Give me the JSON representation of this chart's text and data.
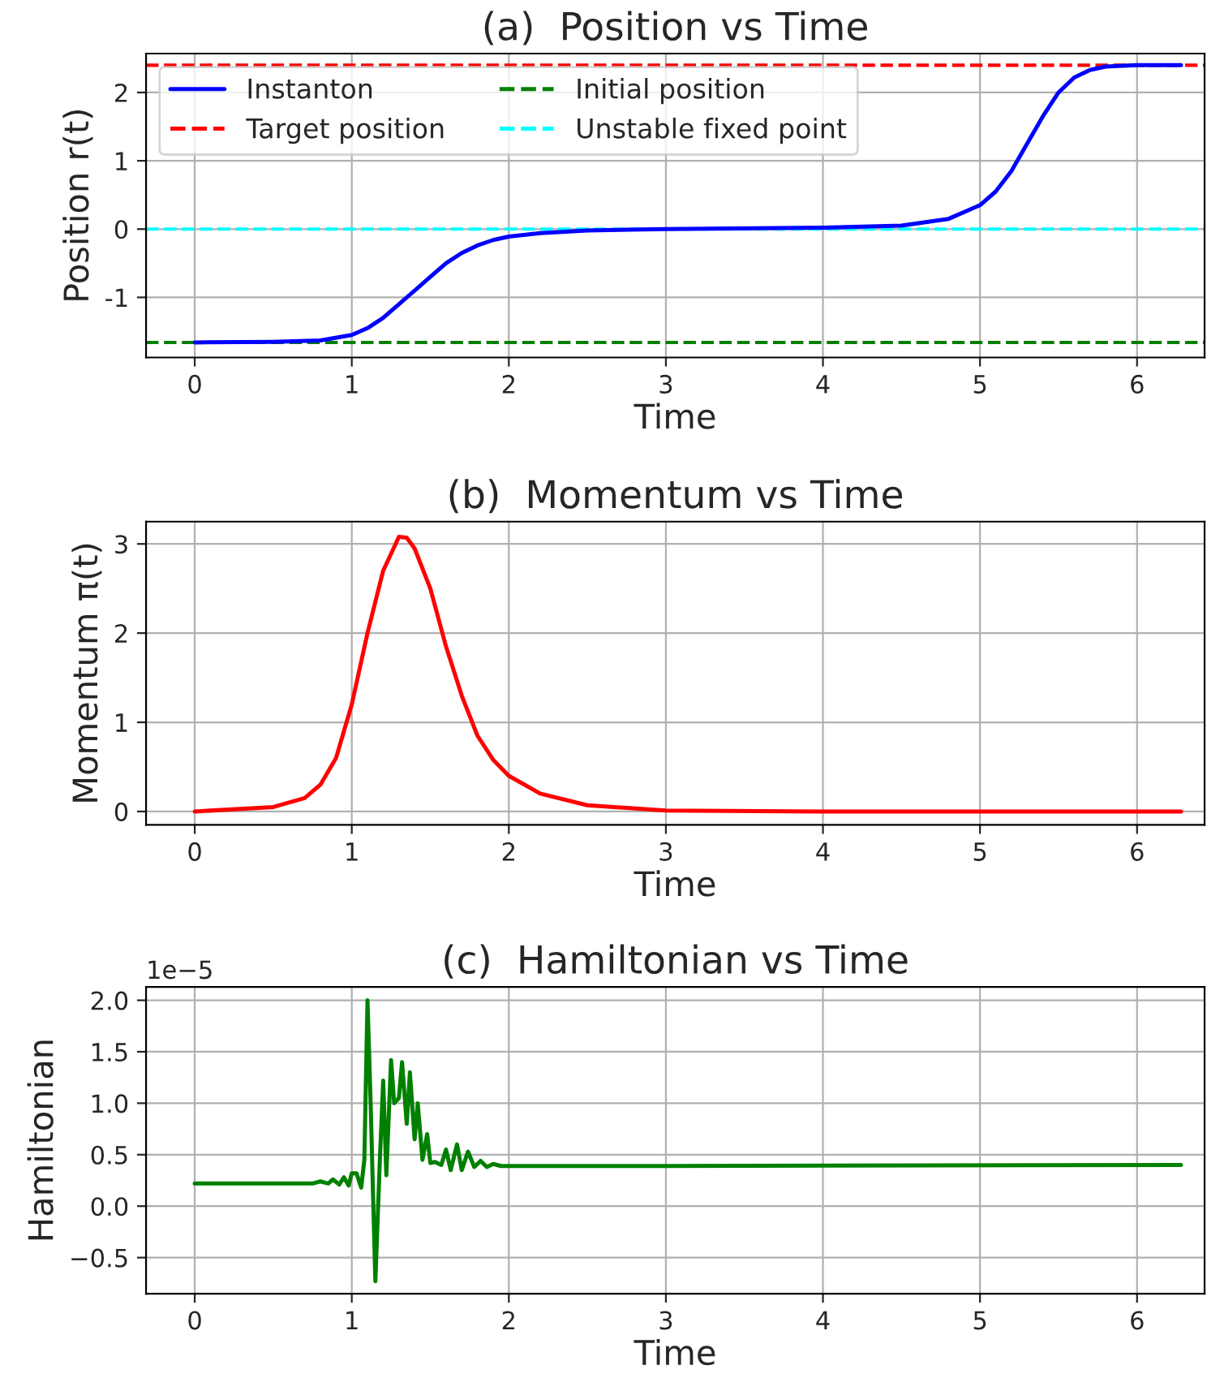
{
  "chart_data": [
    {
      "type": "line",
      "title": "(a)  Position vs Time",
      "xlabel": "Time",
      "ylabel": "Position r(t)",
      "xlim": [
        -0.31,
        6.43
      ],
      "xticks": [
        0,
        1,
        2,
        3,
        4,
        5,
        6
      ],
      "ylim": [
        -1.88,
        2.57
      ],
      "yticks": [
        -1,
        0,
        1,
        2
      ],
      "grid": true,
      "legend": "top left",
      "series": [
        {
          "name": "Instanton",
          "color": "#0000ff",
          "line_style": "solid",
          "x": [
            0,
            0.5,
            0.8,
            1.0,
            1.1,
            1.2,
            1.3,
            1.4,
            1.5,
            1.6,
            1.7,
            1.8,
            1.9,
            2.0,
            2.2,
            2.5,
            3.0,
            4.0,
            4.5,
            4.8,
            5.0,
            5.1,
            5.2,
            5.3,
            5.4,
            5.5,
            5.6,
            5.7,
            5.8,
            6.0,
            6.28
          ],
          "values": [
            -1.66,
            -1.65,
            -1.63,
            -1.55,
            -1.45,
            -1.3,
            -1.1,
            -0.9,
            -0.7,
            -0.5,
            -0.35,
            -0.24,
            -0.16,
            -0.11,
            -0.06,
            -0.02,
            0,
            0.02,
            0.05,
            0.15,
            0.35,
            0.55,
            0.85,
            1.25,
            1.65,
            2.0,
            2.22,
            2.33,
            2.38,
            2.4,
            2.4
          ]
        }
      ],
      "ref_lines": [
        {
          "axis": "y",
          "value": 2.4,
          "label": "Target position",
          "color": "#ff0000",
          "line_style": "dashed"
        },
        {
          "axis": "y",
          "value": -1.66,
          "label": "Initial position",
          "color": "#008000",
          "line_style": "dashed"
        },
        {
          "axis": "y",
          "value": 0,
          "label": "Unstable fixed point",
          "color": "#00ffff",
          "line_style": "dashed"
        }
      ]
    },
    {
      "type": "line",
      "title": "(b)  Momentum vs Time",
      "xlabel": "Time",
      "ylabel": "Momentum π(t)",
      "xlim": [
        -0.31,
        6.43
      ],
      "xticks": [
        0,
        1,
        2,
        3,
        4,
        5,
        6
      ],
      "ylim": [
        -0.15,
        3.25
      ],
      "yticks": [
        0,
        1,
        2,
        3
      ],
      "grid": true,
      "series": [
        {
          "color": "#ff0000",
          "line_style": "solid",
          "x": [
            0,
            0.5,
            0.7,
            0.8,
            0.9,
            1.0,
            1.1,
            1.2,
            1.3,
            1.35,
            1.4,
            1.5,
            1.6,
            1.7,
            1.8,
            1.9,
            2.0,
            2.2,
            2.5,
            3.0,
            4.0,
            6.28
          ],
          "values": [
            0,
            0.05,
            0.15,
            0.3,
            0.6,
            1.2,
            2.0,
            2.7,
            3.08,
            3.07,
            2.95,
            2.5,
            1.85,
            1.3,
            0.85,
            0.58,
            0.4,
            0.2,
            0.07,
            0.01,
            0,
            0
          ]
        }
      ]
    },
    {
      "type": "line",
      "title": "(c)  Hamiltonian vs Time",
      "xlabel": "Time",
      "ylabel": "Hamiltonian",
      "xlim": [
        -0.31,
        6.43
      ],
      "xticks": [
        0,
        1,
        2,
        3,
        4,
        5,
        6
      ],
      "ylim": [
        -0.85,
        2.13
      ],
      "yticks": [
        {
          "value": -0.5,
          "label": "−0.5"
        },
        {
          "value": 0,
          "label": "0.0"
        },
        {
          "value": 0.5,
          "label": "0.5"
        },
        {
          "value": 1,
          "label": "1.0"
        },
        {
          "value": 1.5,
          "label": "1.5"
        },
        {
          "value": 2,
          "label": "2.0"
        }
      ],
      "grid": true,
      "annotations": [
        "1e−5"
      ],
      "series": [
        {
          "color": "#008000",
          "line_style": "solid",
          "x": [
            0,
            0.75,
            0.8,
            0.85,
            0.88,
            0.92,
            0.95,
            0.98,
            1.0,
            1.03,
            1.06,
            1.08,
            1.1,
            1.12,
            1.15,
            1.18,
            1.2,
            1.22,
            1.25,
            1.27,
            1.3,
            1.32,
            1.35,
            1.37,
            1.4,
            1.42,
            1.45,
            1.48,
            1.5,
            1.53,
            1.57,
            1.6,
            1.63,
            1.67,
            1.7,
            1.74,
            1.78,
            1.82,
            1.86,
            1.9,
            1.95,
            2.0,
            3.0,
            6.28
          ],
          "values": [
            0.22,
            0.22,
            0.24,
            0.22,
            0.26,
            0.21,
            0.28,
            0.2,
            0.32,
            0.32,
            0.18,
            0.45,
            2.0,
            1.0,
            -0.73,
            0.5,
            1.22,
            0.3,
            1.42,
            1.0,
            1.05,
            1.4,
            0.8,
            1.3,
            0.65,
            1.0,
            0.45,
            0.7,
            0.42,
            0.43,
            0.4,
            0.55,
            0.35,
            0.6,
            0.35,
            0.53,
            0.38,
            0.44,
            0.38,
            0.41,
            0.39,
            0.39,
            0.39,
            0.4
          ]
        }
      ]
    }
  ]
}
